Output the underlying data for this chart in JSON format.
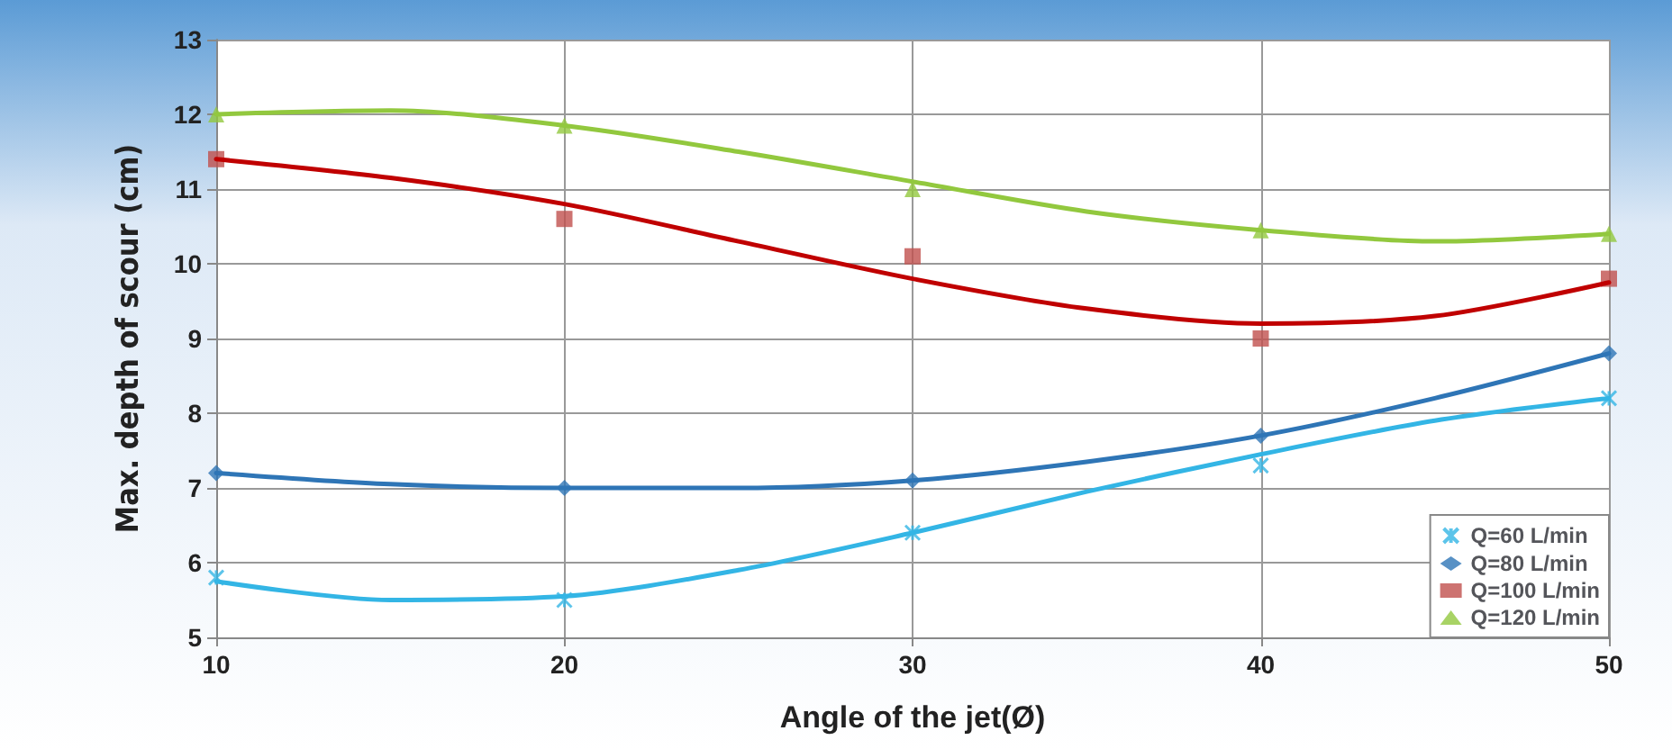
{
  "chart_data": {
    "type": "scatter",
    "xlabel": "Angle of the jet(Ø)",
    "ylabel": "Max. depth of scour (cm)",
    "x": [
      10,
      20,
      30,
      40,
      50
    ],
    "xlim": [
      10,
      50
    ],
    "xticks": [
      10,
      20,
      30,
      40,
      50
    ],
    "ylim": [
      5,
      13
    ],
    "yticks": [
      5,
      6,
      7,
      8,
      9,
      10,
      11,
      12,
      13
    ],
    "grid": true,
    "legend": "bottom right",
    "series": [
      {
        "name": "Q=60 L/min",
        "color": "#33b5e5",
        "marker": "cross",
        "values": [
          5.8,
          5.5,
          6.4,
          7.3,
          8.2
        ]
      },
      {
        "name": "Q=80 L/min",
        "color": "#2e75b6",
        "marker": "diamond",
        "values": [
          7.2,
          7.0,
          7.1,
          7.7,
          8.8
        ]
      },
      {
        "name": "Q=100 L/min",
        "color": "#c0504d",
        "marker": "square",
        "values": [
          11.4,
          10.6,
          10.1,
          9.0,
          9.8
        ]
      },
      {
        "name": "Q=120 L/min",
        "color": "#92c83e",
        "marker": "triangle",
        "values": [
          12.0,
          11.85,
          11.0,
          10.45,
          10.4
        ]
      },
      {
        "type": "line",
        "color": "#33b5e5",
        "marker": "none",
        "x": [
          10,
          15,
          20,
          25,
          30,
          35,
          40,
          45,
          50
        ],
        "values": [
          5.75,
          5.5,
          5.55,
          5.9,
          6.4,
          6.95,
          7.45,
          7.9,
          8.2
        ]
      },
      {
        "type": "line",
        "color": "#2e75b6",
        "marker": "none",
        "x": [
          10,
          15,
          20,
          25,
          30,
          35,
          40,
          45,
          50
        ],
        "values": [
          7.2,
          7.05,
          7.0,
          7.0,
          7.1,
          7.35,
          7.7,
          8.2,
          8.8
        ]
      },
      {
        "type": "line",
        "color": "#c00000",
        "marker": "none",
        "x": [
          10,
          15,
          20,
          25,
          30,
          35,
          40,
          45,
          50
        ],
        "values": [
          11.4,
          11.15,
          10.8,
          10.3,
          9.8,
          9.4,
          9.2,
          9.3,
          9.75
        ]
      },
      {
        "type": "line",
        "color": "#92c83e",
        "marker": "none",
        "x": [
          10,
          15,
          20,
          25,
          30,
          35,
          40,
          45,
          50
        ],
        "values": [
          12.0,
          12.05,
          11.85,
          11.5,
          11.1,
          10.7,
          10.45,
          10.3,
          10.4
        ]
      }
    ]
  }
}
